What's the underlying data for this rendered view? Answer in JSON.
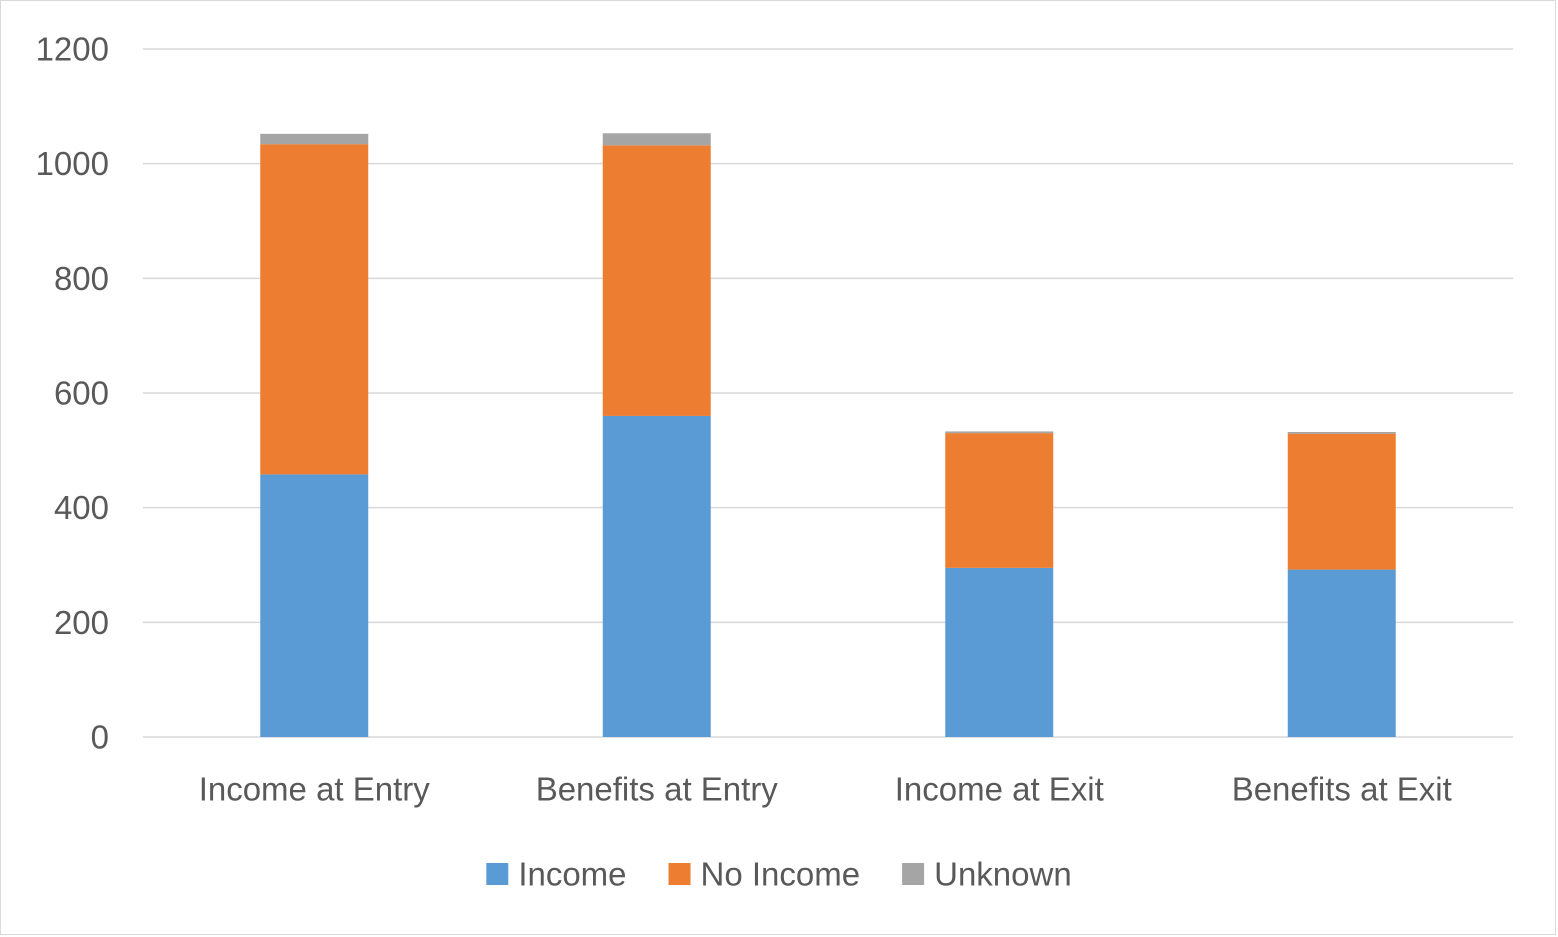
{
  "chart_data": {
    "type": "bar",
    "stacked": true,
    "title": "",
    "xlabel": "",
    "ylabel": "",
    "categories": [
      "Income at Entry",
      "Benefits at Entry",
      "Income at Exit",
      "Benefits at Exit"
    ],
    "series": [
      {
        "name": "Income",
        "color": "#5b9bd5",
        "values": [
          458,
          560,
          295,
          292
        ]
      },
      {
        "name": "No Income",
        "color": "#ed7d31",
        "values": [
          576,
          472,
          235,
          237
        ]
      },
      {
        "name": "Unknown",
        "color": "#a5a5a5",
        "values": [
          18,
          21,
          3,
          3
        ]
      }
    ],
    "ylim": [
      0,
      1200
    ],
    "yticks": [
      0,
      200,
      400,
      600,
      800,
      1000,
      1200
    ],
    "grid": true,
    "legend_position": "bottom"
  },
  "colors": {
    "gridline": "#d9d9d9",
    "axis_text": "#595959",
    "border": "#d9d9d9"
  }
}
